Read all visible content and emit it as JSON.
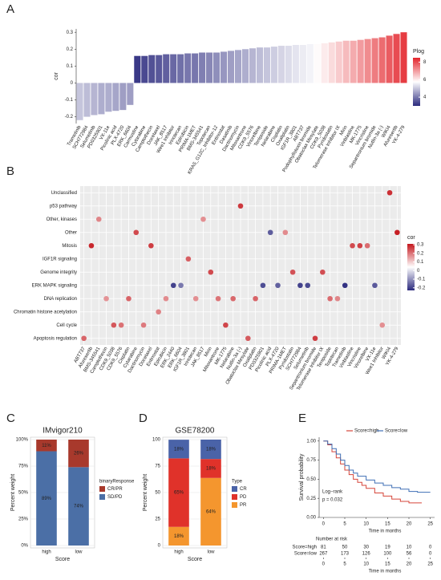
{
  "chart_data": [
    {
      "type": "bar",
      "panel": "A",
      "y_label": "cor",
      "legend_title": "Plog",
      "categories": [
        "Trametinib",
        "SCH772984",
        "Selumetinib",
        "PD0325901",
        "VX-11e",
        "Picolinic acid",
        "PLX-4720",
        "ERK_6604",
        "Carmustine",
        "Cytarabine",
        "Camptothecin",
        "Docetaxel",
        "JAK_8517",
        "Wee1 Inhibitor",
        "Irinotecan",
        "Epirubicin",
        "PRIMA-1MET",
        "BMS-345541",
        "Topotecan",
        "KRAS_G12C_Inhibitor-12",
        "Entinostat",
        "Dasatinib",
        "Dactinomycin",
        "Mitoxantrone",
        "CDK9_5576",
        "Vinorelbine",
        "Teniposide",
        "Nelarabine",
        "Cisplatin",
        "Oxaliplatin",
        "IGF1R_3801",
        "ABT737",
        "Podophyllotoxin bromide",
        "Obatoclax Mesylate",
        "CDK9_5038",
        "Pyridostatin",
        "Telomerase Inhibitor IX",
        "Mirin",
        "Vinblastine",
        "MK-1775",
        "Vincristine",
        "Sepantronium bromide",
        "Nutlin-3a (-)",
        "WIKI4",
        "Afuresertib",
        "YK-4-279"
      ],
      "values": [
        -0.22,
        -0.2,
        -0.19,
        -0.185,
        -0.17,
        -0.165,
        -0.16,
        -0.13,
        0.16,
        0.16,
        0.165,
        0.165,
        0.17,
        0.17,
        0.17,
        0.175,
        0.175,
        0.18,
        0.18,
        0.18,
        0.185,
        0.19,
        0.195,
        0.2,
        0.205,
        0.21,
        0.21,
        0.215,
        0.22,
        0.22,
        0.225,
        0.225,
        0.23,
        0.23,
        0.235,
        0.24,
        0.245,
        0.25,
        0.25,
        0.255,
        0.26,
        0.265,
        0.27,
        0.28,
        0.29,
        0.3
      ],
      "plog": [
        5.0,
        4.9,
        4.8,
        4.7,
        4.7,
        4.6,
        4.5,
        4.5,
        3.2,
        3.4,
        3.5,
        3.6,
        3.7,
        3.8,
        3.9,
        4.0,
        4.0,
        4.1,
        4.2,
        4.3,
        4.4,
        4.5,
        4.6,
        4.7,
        4.8,
        4.9,
        5.0,
        5.1,
        5.2,
        5.3,
        5.4,
        5.5,
        5.6,
        5.8,
        6.0,
        6.2,
        6.4,
        6.6,
        6.8,
        7.0,
        7.2,
        7.4,
        7.6,
        7.8,
        8.0,
        8.2
      ],
      "plog_lim": [
        3,
        8.5
      ],
      "plog_ticks": [
        4,
        6,
        8
      ],
      "plog_colors": [
        "#2b2a7e",
        "#ffffff",
        "#e3242b"
      ],
      "ylim": [
        -0.24,
        0.32
      ],
      "yticks": [
        -0.2,
        -0.1,
        0.0,
        0.1,
        0.2,
        0.3
      ]
    },
    {
      "type": "dot",
      "panel": "B",
      "legend_title": "cor",
      "y_categories": [
        "Unclassified",
        "p53 pathway",
        "Other, kinases",
        "Other",
        "Mitosis",
        "IGF1R signaling",
        "Genome integrity",
        "ERK MAPK signaling",
        "DNA replication",
        "Chromatin histone acetylation",
        "Cell cycle",
        "Apoptosis regulation"
      ],
      "categories": [
        "ABT737",
        "Afuresertib",
        "BMS-345541",
        "Camptothecin",
        "CDK9_5038",
        "CDK9_5576",
        "Cisplatin",
        "Cytarabine",
        "Dactinomycin",
        "Docetaxel",
        "Entinostat",
        "Epirubicin",
        "ERK_2440",
        "ERK_6604",
        "IGF1R_3801",
        "Irinotecan",
        "JAK_8517",
        "Mirin",
        "Mitoxantrone",
        "MK-1775",
        "Nelarabine",
        "Nutlin-3a (-)",
        "Obatoclax Mesylate",
        "Oxaliplatin",
        "PD0325901",
        "Picolinic acid",
        "PLX-4720",
        "PRIMA-1MET",
        "Pyridostatin",
        "SCH772984",
        "Selumetinib",
        "Sepantronium bromide",
        "Telomerase Inhibitor IX",
        "Teniposide",
        "Topotecan",
        "Trametinib",
        "Vinblastine",
        "Vincristine",
        "Vinorelbine",
        "VX-11e",
        "Wee1 Inhibitor",
        "WIKI4",
        "YK-4-279"
      ],
      "y": [
        "Apoptosis regulation",
        "Mitosis",
        "Other, kinases",
        "DNA replication",
        "Cell cycle",
        "Cell cycle",
        "DNA replication",
        "Other",
        "Cell cycle",
        "Mitosis",
        "Chromatin histone acetylation",
        "DNA replication",
        "ERK MAPK signaling",
        "ERK MAPK signaling",
        "IGF1R signaling",
        "DNA replication",
        "Other, kinases",
        "Genome integrity",
        "DNA replication",
        "Cell cycle",
        "DNA replication",
        "p53 pathway",
        "Apoptosis regulation",
        "DNA replication",
        "ERK MAPK signaling",
        "Other",
        "ERK MAPK signaling",
        "Other",
        "Genome integrity",
        "ERK MAPK signaling",
        "ERK MAPK signaling",
        "Apoptosis regulation",
        "Genome integrity",
        "DNA replication",
        "DNA replication",
        "ERK MAPK signaling",
        "Mitosis",
        "Mitosis",
        "Mitosis",
        "ERK MAPK signaling",
        "Cell cycle",
        "Unclassified",
        "Other"
      ],
      "values": [
        0.22,
        0.29,
        0.18,
        0.165,
        0.235,
        0.205,
        0.22,
        0.25,
        0.195,
        0.265,
        0.185,
        0.175,
        -0.2,
        -0.13,
        0.225,
        0.17,
        0.17,
        0.25,
        0.2,
        0.255,
        0.215,
        0.27,
        0.23,
        0.22,
        -0.185,
        -0.165,
        -0.16,
        0.175,
        0.24,
        -0.2,
        -0.19,
        0.265,
        0.245,
        0.21,
        0.18,
        -0.22,
        0.25,
        0.26,
        0.21,
        -0.17,
        0.17,
        0.28,
        0.3
      ],
      "cor_lim": [
        -0.23,
        0.31
      ],
      "cor_ticks": [
        -0.2,
        -0.1,
        0.0,
        0.1,
        0.2,
        0.3
      ],
      "cor_colors": [
        "#2b2a7e",
        "#ffffff",
        "#c4161c"
      ]
    },
    {
      "type": "stacked_bar",
      "panel": "C",
      "title": "IMvigor210",
      "x_label": "Score",
      "y_label": "Percent weight",
      "legend_title": "binaryResponse",
      "categories": [
        "high",
        "low"
      ],
      "series": [
        {
          "name": "CR/PR",
          "color": "#a8392c",
          "values": [
            11,
            26
          ],
          "value_labels": [
            "11%",
            "26%"
          ]
        },
        {
          "name": "SD/PD",
          "color": "#4b6fa6",
          "values": [
            89,
            74
          ],
          "value_labels": [
            "89%",
            "74%"
          ]
        }
      ],
      "ylim": [
        0,
        100
      ],
      "yticks": [
        {
          "value": 0,
          "label": "0%"
        },
        {
          "value": 25,
          "label": "25%"
        },
        {
          "value": 50,
          "label": "50%"
        },
        {
          "value": 75,
          "label": "75%"
        },
        {
          "value": 100,
          "label": "100%"
        }
      ]
    },
    {
      "type": "stacked_bar",
      "panel": "D",
      "title": "GSE78200",
      "x_label": "Score",
      "y_label": "Percent weight",
      "legend_title": "Type",
      "categories": [
        "high",
        "low"
      ],
      "series": [
        {
          "name": "CR",
          "color": "#4a63a8",
          "values": [
            17.6,
            18.3
          ],
          "value_labels": [
            "18%",
            "18%"
          ]
        },
        {
          "name": "PD",
          "color": "#e0322a",
          "values": [
            64.7,
            17.9
          ],
          "value_labels": [
            "65%",
            "18%"
          ]
        },
        {
          "name": "PR",
          "color": "#f4962e",
          "values": [
            17.6,
            63.8
          ],
          "value_labels": [
            "18%",
            "64%"
          ]
        }
      ],
      "ylim": [
        0,
        100
      ],
      "yticks": [
        0,
        25,
        50,
        75,
        100
      ]
    },
    {
      "type": "km",
      "panel": "E",
      "x_label": "Time in months",
      "y_label": "Survival probability",
      "annotation": [
        "Log−rank",
        "p = 0.032"
      ],
      "series": [
        {
          "name": "Score=high",
          "color": "#d6453a",
          "x": [
            0,
            1,
            2,
            3,
            4,
            5,
            6,
            7,
            8,
            9,
            10,
            12,
            14,
            16,
            18,
            20,
            23
          ],
          "values": [
            1,
            0.95,
            0.86,
            0.78,
            0.7,
            0.62,
            0.56,
            0.5,
            0.46,
            0.42,
            0.38,
            0.32,
            0.28,
            0.24,
            0.21,
            0.19,
            0.19
          ],
          "at_risk": [
            81,
            50,
            30,
            19,
            10,
            0
          ]
        },
        {
          "name": "Score=low",
          "color": "#3f6fb5",
          "x": [
            0,
            1,
            2,
            3,
            4,
            5,
            6,
            7,
            8,
            10,
            12,
            14,
            16,
            18,
            20,
            22,
            25
          ],
          "values": [
            1,
            0.96,
            0.9,
            0.83,
            0.75,
            0.68,
            0.62,
            0.58,
            0.54,
            0.49,
            0.45,
            0.42,
            0.39,
            0.37,
            0.34,
            0.33,
            0.33
          ],
          "at_risk": [
            267,
            173,
            126,
            100,
            56,
            0
          ]
        }
      ],
      "risk_title": "Number at risk",
      "xlim": [
        -1,
        26
      ],
      "xticks": [
        0,
        5,
        10,
        15,
        20,
        25
      ],
      "ylim": [
        0,
        1.05
      ],
      "yticks": [
        {
          "value": 0,
          "label": "0.00"
        },
        {
          "value": 0.25,
          "label": "0.25"
        },
        {
          "value": 0.5,
          "label": "0.50"
        },
        {
          "value": 0.75,
          "label": "0.75"
        },
        {
          "value": 1,
          "label": "1.00"
        }
      ]
    }
  ]
}
